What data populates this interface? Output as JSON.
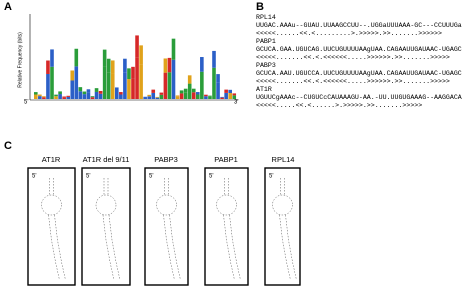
{
  "panels": {
    "a": "A",
    "b": "B",
    "c": "C"
  },
  "logo": {
    "y_label": "Relative Frequency (bits)",
    "start": "5'",
    "end": "3'"
  },
  "alignment": [
    {
      "name": "RPL14",
      "sequence": "UUGAC.AAAu--GUAU.UUAAGCCUU--.UGGaUUUAAA-GC---CCUUUGa",
      "structure": "<<<<<......<<.<.........>.>>>>>.>>.......>>>>>>"
    },
    {
      "name": "PABP1",
      "sequence": "GCUCA.GAA.UGUCAG.UUCUGUUUUAAgUAA.CAGAAUUGAUAAC-UGAGC",
      "structure": "<<<<<.......<<.<.<<<<<<.....>>>>>>.>>.......>>>>>"
    },
    {
      "name": "PABP3",
      "sequence": "GCUCA.AAU.UGUCCA.UUCUGUUUUAAgUAA.CAGAAUUGAUAAC-UGAGC",
      "structure": "<<<<<.......<<.<.<<<<<<.....>>>>>>.>>.......>>>>>"
    },
    {
      "name": "AT1R",
      "sequence": "UGUUCgAAAc--CUGUCcCAUAAAGU-AA.-UU.UUGUGAAAG--AAGGACA",
      "structure": "<<<<<.....<<.<......>.>>>>>.>>.......>>>>>"
    }
  ],
  "structures": [
    {
      "name": "AT1R",
      "end": "5'"
    },
    {
      "name": "AT1R del 9/11",
      "end": "5'"
    },
    {
      "name": "PABP3",
      "end": "5'"
    },
    {
      "name": "PABP1",
      "end": "5'"
    },
    {
      "name": "RPL14",
      "end": "5'"
    }
  ]
}
